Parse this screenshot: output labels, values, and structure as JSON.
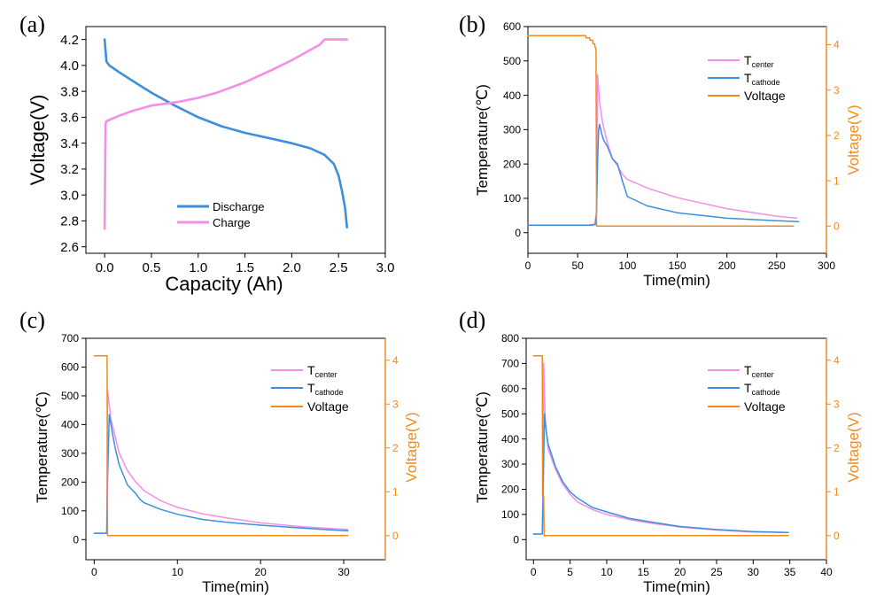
{
  "chart_data": [
    {
      "id": "a",
      "panel_label": "(a)",
      "type": "line",
      "xlabel": "Capacity (Ah)",
      "ylabel": "Voltage(V)",
      "xlim": [
        -0.2,
        3.0
      ],
      "ylim": [
        2.55,
        4.3
      ],
      "xticks": [
        0.0,
        0.5,
        1.0,
        1.5,
        2.0,
        2.5,
        3.0
      ],
      "xtick_labels": [
        "0.0",
        "0.5",
        "1.0",
        "1.5",
        "2.0",
        "2.5",
        "3.0"
      ],
      "yticks": [
        2.6,
        2.8,
        3.0,
        3.2,
        3.4,
        3.6,
        3.8,
        4.0,
        4.2
      ],
      "ytick_labels": [
        "2.6",
        "2.8",
        "3.0",
        "3.2",
        "3.4",
        "3.6",
        "3.8",
        "4.0",
        "4.2"
      ],
      "legend_position": "bottom-center",
      "series": [
        {
          "name": "Discharge",
          "color": "#3d8fdc",
          "x": [
            0.0,
            0.02,
            0.05,
            0.15,
            0.3,
            0.5,
            0.75,
            1.0,
            1.25,
            1.5,
            1.75,
            2.0,
            2.2,
            2.35,
            2.45,
            2.5,
            2.54,
            2.57,
            2.59
          ],
          "y": [
            4.2,
            4.03,
            4.0,
            3.95,
            3.88,
            3.79,
            3.69,
            3.6,
            3.53,
            3.48,
            3.44,
            3.4,
            3.36,
            3.31,
            3.24,
            3.15,
            3.02,
            2.9,
            2.75
          ]
        },
        {
          "name": "Charge",
          "color": "#f48ee8",
          "x": [
            0.0,
            0.005,
            0.01,
            0.02,
            0.15,
            0.3,
            0.5,
            0.8,
            1.0,
            1.2,
            1.5,
            1.8,
            2.0,
            2.2,
            2.3,
            2.35,
            2.45,
            2.59
          ],
          "y": [
            2.74,
            3.2,
            3.55,
            3.57,
            3.61,
            3.65,
            3.69,
            3.72,
            3.75,
            3.79,
            3.87,
            3.97,
            4.04,
            4.12,
            4.16,
            4.2,
            4.2,
            4.2
          ]
        }
      ]
    },
    {
      "id": "b",
      "panel_label": "(b)",
      "type": "line",
      "xlabel": "Time(min)",
      "ylabel": "Temperature(℃)",
      "y2label": "Voltage(V)",
      "xlim": [
        0,
        300
      ],
      "ylim": [
        -60,
        600
      ],
      "y2lim": [
        -0.6,
        4.4
      ],
      "xticks": [
        0,
        50,
        100,
        150,
        200,
        250,
        300
      ],
      "xtick_labels": [
        "0",
        "50",
        "100",
        "150",
        "200",
        "250",
        "300"
      ],
      "yticks": [
        0,
        100,
        200,
        300,
        400,
        500,
        600
      ],
      "ytick_labels": [
        "0",
        "100",
        "200",
        "300",
        "400",
        "500",
        "600"
      ],
      "y2ticks": [
        0,
        1,
        2,
        3,
        4
      ],
      "y2tick_labels": [
        "0",
        "1",
        "2",
        "3",
        "4"
      ],
      "legend_position": "top-right",
      "series": [
        {
          "name": "T",
          "subscript": "center",
          "color": "#f48ee8",
          "axis": "left",
          "x": [
            0,
            60,
            67,
            69,
            70,
            72,
            75,
            80,
            85,
            90,
            95,
            100,
            120,
            150,
            200,
            250,
            270
          ],
          "y": [
            22,
            22,
            25,
            60,
            460,
            380,
            320,
            260,
            215,
            195,
            170,
            155,
            130,
            102,
            70,
            48,
            42
          ]
        },
        {
          "name": "T",
          "subscript": "cathode",
          "color": "#3d8fdc",
          "axis": "left",
          "x": [
            0,
            65,
            68,
            69,
            70,
            71,
            72,
            74,
            76,
            80,
            85,
            90,
            95,
            100,
            120,
            150,
            200,
            250,
            272
          ],
          "y": [
            22,
            22,
            24,
            60,
            200,
            300,
            315,
            290,
            270,
            250,
            215,
            200,
            150,
            105,
            78,
            58,
            42,
            35,
            32
          ]
        },
        {
          "name": "Voltage",
          "subscript": "",
          "color": "#f08a1e",
          "axis": "right",
          "x": [
            0,
            58,
            58.5,
            62,
            62.5,
            65,
            65.5,
            67,
            67.5,
            68.5,
            69,
            267
          ],
          "y": [
            4.2,
            4.2,
            4.15,
            4.15,
            4.1,
            4.1,
            4.02,
            4.02,
            3.95,
            3.9,
            0.0,
            0.0
          ]
        }
      ]
    },
    {
      "id": "c",
      "panel_label": "(c)",
      "type": "line",
      "xlabel": "Time(min)",
      "ylabel": "Temperature(℃)",
      "y2label": "Voltage(V)",
      "xlim": [
        -1,
        35
      ],
      "ylim": [
        -70,
        700
      ],
      "y2lim": [
        -0.55,
        4.5
      ],
      "xticks": [
        0,
        10,
        20,
        30
      ],
      "xtick_labels": [
        "0",
        "10",
        "20",
        "30"
      ],
      "yticks": [
        0,
        100,
        200,
        300,
        400,
        500,
        600,
        700
      ],
      "ytick_labels": [
        "0",
        "100",
        "200",
        "300",
        "400",
        "500",
        "600",
        "700"
      ],
      "y2ticks": [
        0,
        1,
        2,
        3,
        4
      ],
      "y2tick_labels": [
        "0",
        "1",
        "2",
        "3",
        "4"
      ],
      "legend_position": "top-right",
      "series": [
        {
          "name": "T",
          "subscript": "center",
          "color": "#f48ee8",
          "axis": "left",
          "x": [
            0,
            1.4,
            1.5,
            1.6,
            2.0,
            2.5,
            3,
            4,
            5,
            6,
            8,
            10,
            13,
            16,
            20,
            25,
            30.5
          ],
          "y": [
            22,
            22,
            30,
            520,
            420,
            360,
            300,
            240,
            200,
            170,
            135,
            112,
            90,
            75,
            58,
            45,
            35
          ]
        },
        {
          "name": "T",
          "subscript": "cathode",
          "color": "#3d8fdc",
          "axis": "left",
          "x": [
            0,
            1.5,
            1.6,
            1.8,
            2.0,
            2.5,
            3,
            4,
            5,
            5.5,
            6,
            8,
            10,
            13,
            16,
            20,
            25,
            30.5
          ],
          "y": [
            22,
            22,
            200,
            435,
            400,
            320,
            260,
            190,
            160,
            140,
            128,
            105,
            88,
            70,
            60,
            50,
            40,
            30
          ]
        },
        {
          "name": "Voltage",
          "subscript": "",
          "color": "#f08a1e",
          "axis": "right",
          "x": [
            0,
            1.55,
            1.6,
            30.5
          ],
          "y": [
            4.1,
            4.1,
            0.0,
            0.0
          ]
        }
      ]
    },
    {
      "id": "d",
      "panel_label": "(d)",
      "type": "line",
      "xlabel": "Time(min)",
      "ylabel": "Temperature(℃)",
      "y2label": "Voltage(V)",
      "xlim": [
        -1,
        40
      ],
      "ylim": [
        -80,
        800
      ],
      "y2lim": [
        -0.55,
        4.5
      ],
      "xticks": [
        0,
        5,
        10,
        15,
        20,
        25,
        30,
        35,
        40
      ],
      "xtick_labels": [
        "0",
        "5",
        "10",
        "15",
        "20",
        "25",
        "30",
        "35",
        "40"
      ],
      "yticks": [
        0,
        100,
        200,
        300,
        400,
        500,
        600,
        700,
        800
      ],
      "ytick_labels": [
        "0",
        "100",
        "200",
        "300",
        "400",
        "500",
        "600",
        "700",
        "800"
      ],
      "y2ticks": [
        0,
        1,
        2,
        3,
        4
      ],
      "y2tick_labels": [
        "0",
        "1",
        "2",
        "3",
        "4"
      ],
      "legend_position": "top-right",
      "series": [
        {
          "name": "T",
          "subscript": "center",
          "color": "#f48ee8",
          "axis": "left",
          "x": [
            0,
            1.2,
            1.3,
            1.4,
            1.6,
            2,
            3,
            4,
            5,
            6,
            8,
            10,
            13,
            16,
            20,
            25,
            30,
            34.8
          ],
          "y": [
            22,
            22,
            200,
            700,
            480,
            360,
            280,
            220,
            180,
            150,
            120,
            100,
            80,
            65,
            50,
            38,
            30,
            28
          ]
        },
        {
          "name": "T",
          "subscript": "cathode",
          "color": "#3d8fdc",
          "axis": "left",
          "x": [
            0,
            1.2,
            1.3,
            1.5,
            1.7,
            2,
            3,
            4,
            5,
            6,
            8,
            10,
            13,
            16,
            20,
            25,
            30,
            34.8
          ],
          "y": [
            22,
            22,
            150,
            500,
            440,
            380,
            290,
            230,
            190,
            165,
            128,
            110,
            85,
            70,
            52,
            40,
            32,
            28
          ]
        },
        {
          "name": "Voltage",
          "subscript": "",
          "color": "#f08a1e",
          "axis": "right",
          "x": [
            0,
            1.2,
            1.25,
            1.4,
            1.45,
            34.8
          ],
          "y": [
            4.1,
            4.1,
            0.9,
            0.9,
            0.0,
            0.0
          ]
        }
      ]
    }
  ]
}
